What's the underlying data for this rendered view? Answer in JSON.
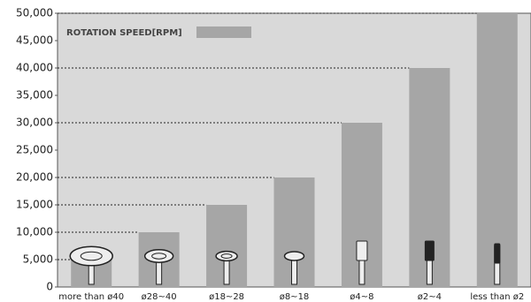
{
  "chart_data": {
    "type": "bar",
    "legend_label": "ROTATION SPEED[RPM]",
    "categories": [
      "more than ø40",
      "ø28~40",
      "ø18~28",
      "ø8~18",
      "ø4~8",
      "ø2~4",
      "less than ø2"
    ],
    "values": [
      5000,
      10000,
      15000,
      20000,
      30000,
      40000,
      50000
    ],
    "color": "#a6a6a6",
    "ylim": [
      0,
      50000
    ],
    "yticks": [
      0,
      {
        "value": 5000,
        "label": "5,000"
      },
      {
        "value": 10000,
        "label": "10,000"
      },
      {
        "value": 15000,
        "label": "15,000"
      },
      {
        "value": 20000,
        "label": "20,000"
      },
      {
        "value": 25000,
        "label": "25,000"
      },
      {
        "value": 30000,
        "label": "30,000"
      },
      {
        "value": 35000,
        "label": "35,000"
      },
      {
        "value": 40000,
        "label": "40,000"
      },
      {
        "value": 45000,
        "label": "45,000"
      },
      {
        "value": 50000,
        "label": "50,000"
      }
    ],
    "reference_lines": true
  }
}
